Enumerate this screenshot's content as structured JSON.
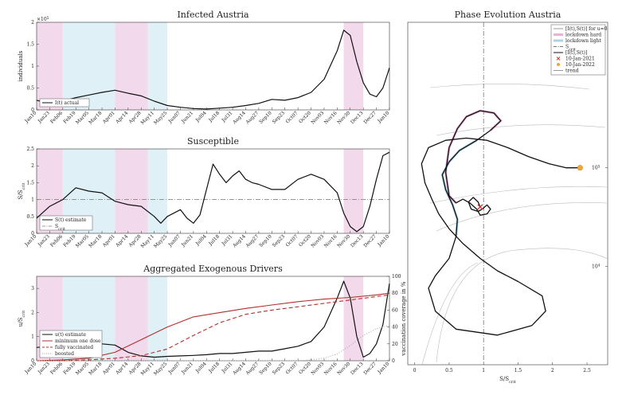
{
  "colors": {
    "lockdown_hard": "#f3d9ec",
    "lockdown_light": "#dff0f6",
    "black": "#111111",
    "red": "#b0302a",
    "gray_dash": "#777777",
    "pink_line": "#d87fb8",
    "blue_line": "#74b4d4",
    "marker_start": "#d23c2e",
    "marker_end": "#f0a63a"
  },
  "date_ticks": [
    "Jan10",
    "Jan23",
    "Feb06",
    "Feb19",
    "Mar05",
    "Mar18",
    "Apr01",
    "Apr14",
    "Apr28",
    "May11",
    "May25",
    "Jun07",
    "Jun21",
    "Jul04",
    "Jul18",
    "Jul31",
    "Aug14",
    "Aug27",
    "Sep10",
    "Sep23",
    "Oct07",
    "Oct20",
    "Nov03",
    "Nov16",
    "Nov30",
    "Dec13",
    "Dec27",
    "Jan10"
  ],
  "chart_data": [
    {
      "type": "line",
      "title": "Infected Austria",
      "ylabel": "individuals",
      "y_exponent": "× 10^5",
      "ylim": [
        0,
        2
      ],
      "yticks": [
        "0",
        "0.5",
        "1",
        "1.5",
        "2"
      ],
      "shaded_periods": [
        {
          "kind": "hard",
          "x": [
            0,
            2
          ]
        },
        {
          "kind": "light",
          "x": [
            2,
            6
          ]
        },
        {
          "kind": "hard",
          "x": [
            6,
            8.5
          ]
        },
        {
          "kind": "light",
          "x": [
            8.5,
            10
          ]
        },
        {
          "kind": "hard",
          "x": [
            23.5,
            25
          ]
        }
      ],
      "legend": [
        {
          "label": "I(t) actual",
          "style": "solid-black"
        }
      ],
      "series": [
        {
          "name": "I(t) actual",
          "color": "black",
          "x": [
            0,
            1,
            2,
            3,
            4,
            5,
            6,
            7,
            8,
            9,
            10,
            11,
            12,
            13,
            14,
            15,
            16,
            17,
            18,
            19,
            20,
            21,
            22,
            23,
            23.5,
            24,
            24.5,
            25,
            25.5,
            26,
            26.5,
            27
          ],
          "y": [
            0.22,
            0.15,
            0.2,
            0.28,
            0.34,
            0.4,
            0.45,
            0.38,
            0.32,
            0.2,
            0.1,
            0.06,
            0.03,
            0.02,
            0.04,
            0.06,
            0.1,
            0.15,
            0.24,
            0.22,
            0.28,
            0.4,
            0.7,
            1.35,
            1.82,
            1.7,
            1.1,
            0.62,
            0.36,
            0.3,
            0.5,
            0.96
          ]
        }
      ]
    },
    {
      "type": "line",
      "title": "Susceptible",
      "ylabel": "S/S_crit",
      "ylim": [
        0,
        2.5
      ],
      "yticks": [
        "0",
        "0.5",
        "1",
        "1.5",
        "2",
        "2.5"
      ],
      "shaded_periods": [
        {
          "kind": "hard",
          "x": [
            0,
            2
          ]
        },
        {
          "kind": "light",
          "x": [
            2,
            6
          ]
        },
        {
          "kind": "hard",
          "x": [
            6,
            8.5
          ]
        },
        {
          "kind": "light",
          "x": [
            8.5,
            10
          ]
        },
        {
          "kind": "hard",
          "x": [
            23.5,
            25
          ]
        }
      ],
      "reference_line": {
        "name": "S_crit",
        "y": 1
      },
      "legend": [
        {
          "label": "S(t) estimate",
          "style": "solid-black"
        },
        {
          "label": "S_crit",
          "style": "dashdot-gray"
        }
      ],
      "series": [
        {
          "name": "S(t) estimate",
          "color": "black",
          "x": [
            0,
            1,
            2,
            3,
            4,
            5,
            6,
            7,
            8,
            9,
            9.5,
            10,
            11,
            11.5,
            12,
            12.5,
            13,
            13.5,
            14,
            14.5,
            15,
            15.5,
            16,
            16.5,
            17,
            18,
            19,
            20,
            21,
            22,
            23,
            23.5,
            24,
            24.5,
            25,
            25.5,
            26,
            26.5,
            27
          ],
          "y": [
            0.45,
            0.8,
            1.0,
            1.35,
            1.25,
            1.2,
            0.95,
            0.85,
            0.8,
            0.5,
            0.3,
            0.5,
            0.7,
            0.45,
            0.3,
            0.55,
            1.3,
            2.05,
            1.75,
            1.5,
            1.7,
            1.85,
            1.6,
            1.5,
            1.45,
            1.3,
            1.3,
            1.6,
            1.75,
            1.6,
            1.2,
            0.6,
            0.2,
            0.05,
            0.2,
            0.8,
            1.6,
            2.3,
            2.4
          ]
        }
      ]
    },
    {
      "type": "line",
      "title": "Aggregated Exogenous Drivers",
      "ylabel": "u/S_crit",
      "ylim": [
        0,
        3.5
      ],
      "yticks": [
        "0",
        "1",
        "2",
        "3"
      ],
      "y2label": "vaccination coverage in %",
      "y2lim": [
        0,
        100
      ],
      "y2ticks": [
        "0",
        "20",
        "40",
        "60",
        "80",
        "100"
      ],
      "shaded_periods": [
        {
          "kind": "hard",
          "x": [
            0,
            2
          ]
        },
        {
          "kind": "light",
          "x": [
            2,
            6
          ]
        },
        {
          "kind": "hard",
          "x": [
            6,
            8.5
          ]
        },
        {
          "kind": "light",
          "x": [
            8.5,
            10
          ]
        },
        {
          "kind": "hard",
          "x": [
            23.5,
            25
          ]
        }
      ],
      "legend": [
        {
          "label": "u(t) estimate",
          "style": "solid-black"
        },
        {
          "label": "minimum one dose",
          "style": "solid-red"
        },
        {
          "label": "fully vaccinated",
          "style": "dashed-red"
        },
        {
          "label": "boosted",
          "style": "dotted-gray"
        }
      ],
      "series": [
        {
          "name": "u(t) estimate",
          "axis": "left",
          "color": "black",
          "x": [
            0,
            1,
            2,
            3,
            4,
            5,
            6,
            7,
            8,
            9,
            10,
            11,
            12,
            13,
            14,
            15,
            16,
            17,
            18,
            19,
            20,
            21,
            22,
            23,
            23.5,
            24,
            24.5,
            25,
            25.5,
            26,
            26.5,
            27
          ],
          "y": [
            0.55,
            0.6,
            0.7,
            0.8,
            0.75,
            0.7,
            0.65,
            0.35,
            0.2,
            0.15,
            0.18,
            0.2,
            0.22,
            0.25,
            0.3,
            0.3,
            0.35,
            0.4,
            0.4,
            0.5,
            0.6,
            0.8,
            1.4,
            2.6,
            3.3,
            2.6,
            1.0,
            0.15,
            0.3,
            0.7,
            1.5,
            3.2
          ]
        },
        {
          "name": "minimum one dose",
          "axis": "right",
          "color": "red",
          "x": [
            0,
            2,
            4,
            6,
            8,
            10,
            12,
            14,
            16,
            18,
            20,
            22,
            24,
            26,
            27
          ],
          "y": [
            0,
            1,
            3,
            10,
            25,
            40,
            52,
            57,
            62,
            66,
            70,
            73,
            75,
            78,
            80
          ]
        },
        {
          "name": "fully vaccinated",
          "axis": "right",
          "color": "red",
          "x": [
            0,
            2,
            4,
            6,
            8,
            10,
            12,
            14,
            16,
            18,
            20,
            22,
            24,
            26,
            27
          ],
          "y": [
            0,
            0,
            1,
            3,
            6,
            14,
            30,
            45,
            55,
            60,
            64,
            68,
            72,
            76,
            78
          ]
        },
        {
          "name": "boosted",
          "axis": "right",
          "color": "gray",
          "x": [
            0,
            20,
            21,
            22,
            23,
            24,
            25,
            26,
            27
          ],
          "y": [
            0,
            0,
            1,
            3,
            8,
            18,
            30,
            38,
            42
          ]
        }
      ]
    },
    {
      "type": "line",
      "title": "Phase Evolution Austria",
      "xlabel": "S/S_crit",
      "xlim": [
        -0.1,
        2.8
      ],
      "xticks": [
        "0",
        "0.5",
        "1",
        "1.5",
        "2",
        "2.5"
      ],
      "yscale": "log",
      "ylim": [
        1000,
        3000000
      ],
      "yticks_labeled": [
        "10^4",
        "10^5"
      ],
      "legend": [
        {
          "label": "[I(t),S(t)] for u=0",
          "style": "solid-gray"
        },
        {
          "label": "lockdown hard",
          "style": "thick-pink"
        },
        {
          "label": "lockdown light",
          "style": "thick-blue"
        },
        {
          "label": "S_crit",
          "style": "dashdot-gray"
        },
        {
          "label": "[I(t),S(t)]",
          "style": "solid-black"
        },
        {
          "label": "10-Jan-2021",
          "style": "x-red"
        },
        {
          "label": "10-Jan-2022",
          "style": "star-orange"
        },
        {
          "label": "trend",
          "style": "solid-gray"
        }
      ],
      "series": [
        {
          "name": "[I(t),S(t)]",
          "color": "black",
          "x": [
            0.95,
            0.92,
            0.85,
            0.78,
            0.82,
            0.92,
            0.98,
            1.05,
            1.1,
            1.05,
            0.95,
            0.9,
            0.8,
            0.7,
            0.6,
            0.5,
            0.45,
            0.5,
            0.62,
            0.75,
            0.95,
            1.15,
            1.25,
            1.1,
            0.9,
            0.65,
            0.5,
            0.4,
            0.45,
            0.55,
            0.62,
            0.6,
            0.5,
            0.3,
            0.2,
            0.3,
            0.6,
            1.2,
            1.7,
            1.9,
            1.85,
            1.5,
            1.2,
            0.95,
            0.7,
            0.5,
            0.35,
            0.25,
            0.15,
            0.1,
            0.2,
            0.45,
            0.75,
            1.05,
            1.35,
            1.65,
            1.95,
            2.2,
            2.38
          ],
          "y": [
            40000,
            45000,
            50000,
            45000,
            38000,
            36000,
            38000,
            42000,
            38000,
            34000,
            33000,
            38000,
            44000,
            48000,
            44000,
            52000,
            90000,
            160000,
            250000,
            330000,
            380000,
            360000,
            300000,
            240000,
            190000,
            150000,
            115000,
            85000,
            60000,
            42000,
            30000,
            20000,
            12000,
            8000,
            6000,
            3500,
            2300,
            2000,
            2500,
            3500,
            5000,
            7000,
            9000,
            12000,
            17000,
            24000,
            34000,
            48000,
            70000,
            110000,
            160000,
            190000,
            200000,
            190000,
            160000,
            130000,
            110000,
            100000,
            100000
          ]
        }
      ],
      "markers": [
        {
          "label": "10-Jan-2021",
          "x": 0.95,
          "y": 40000
        },
        {
          "label": "10-Jan-2022",
          "x": 2.4,
          "y": 100000
        }
      ]
    }
  ]
}
